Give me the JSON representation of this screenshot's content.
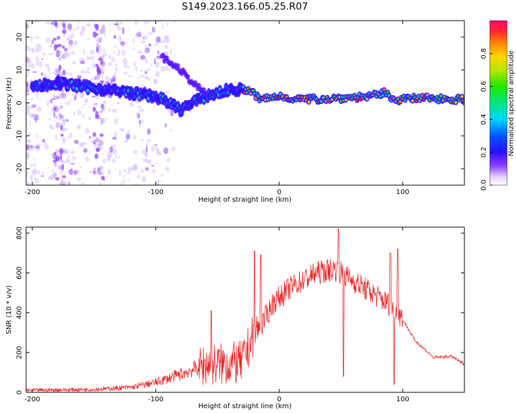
{
  "figure": {
    "title": "S149.2023.166.05.25.R07"
  },
  "chart_data": [
    {
      "type": "heatmap",
      "xlabel": "Height of straight line (km)",
      "ylabel": "Frequency (Hz)",
      "xlim": [
        -205,
        150
      ],
      "ylim": [
        -25,
        25
      ],
      "x_ticks": [
        -200,
        -100,
        0,
        100
      ],
      "y_ticks": [
        -20,
        -10,
        0,
        10,
        20
      ],
      "colorbar": {
        "label": "Normalized spectral amplitude",
        "range": [
          0,
          1
        ],
        "ticks": [
          0.0,
          0.2,
          0.4,
          0.6,
          0.8
        ]
      },
      "ridge_track": [
        {
          "x": -200,
          "y": 5
        },
        {
          "x": -180,
          "y": 6
        },
        {
          "x": -160,
          "y": 5
        },
        {
          "x": -140,
          "y": 4
        },
        {
          "x": -120,
          "y": 3
        },
        {
          "x": -100,
          "y": 2
        },
        {
          "x": -80,
          "y": -2
        },
        {
          "x": -60,
          "y": 2
        },
        {
          "x": -40,
          "y": 4
        },
        {
          "x": -25,
          "y": 4
        },
        {
          "x": -15,
          "y": 1
        },
        {
          "x": 0,
          "y": 2
        },
        {
          "x": 20,
          "y": 1
        },
        {
          "x": 50,
          "y": 1.5
        },
        {
          "x": 75,
          "y": 2
        },
        {
          "x": 85,
          "y": 3
        },
        {
          "x": 95,
          "y": 1
        },
        {
          "x": 120,
          "y": 1.5
        },
        {
          "x": 150,
          "y": 1
        }
      ],
      "secondary_track": [
        {
          "x": -95,
          "y": 14
        },
        {
          "x": -80,
          "y": 10
        },
        {
          "x": -70,
          "y": 6
        },
        {
          "x": -60,
          "y": 3
        }
      ]
    },
    {
      "type": "line",
      "xlabel": "Height of straight line (km)",
      "ylabel": "SNR (10 * v/v)",
      "xlim": [
        -205,
        150
      ],
      "ylim": [
        0,
        830
      ],
      "x_ticks": [
        -200,
        -100,
        0,
        100
      ],
      "y_ticks": [
        0,
        200,
        400,
        600,
        800
      ],
      "series": [
        {
          "color": "#ee2222",
          "trend": [
            {
              "x": -205,
              "y": 10
            },
            {
              "x": -150,
              "y": 15
            },
            {
              "x": -120,
              "y": 25
            },
            {
              "x": -100,
              "y": 50
            },
            {
              "x": -80,
              "y": 90
            },
            {
              "x": -60,
              "y": 140
            },
            {
              "x": -50,
              "y": 140
            },
            {
              "x": -30,
              "y": 150
            },
            {
              "x": -20,
              "y": 300
            },
            {
              "x": -15,
              "y": 330
            },
            {
              "x": -5,
              "y": 450
            },
            {
              "x": 10,
              "y": 530
            },
            {
              "x": 30,
              "y": 600
            },
            {
              "x": 45,
              "y": 620
            },
            {
              "x": 60,
              "y": 560
            },
            {
              "x": 80,
              "y": 480
            },
            {
              "x": 95,
              "y": 420
            },
            {
              "x": 110,
              "y": 260
            },
            {
              "x": 125,
              "y": 175
            },
            {
              "x": 140,
              "y": 180
            },
            {
              "x": 150,
              "y": 140
            }
          ],
          "peaks": [
            {
              "x": -55,
              "y": 410
            },
            {
              "x": -20,
              "y": 710
            },
            {
              "x": -15,
              "y": 690
            },
            {
              "x": 48,
              "y": 820
            },
            {
              "x": 52,
              "y": 80
            },
            {
              "x": 90,
              "y": 700
            },
            {
              "x": 93,
              "y": 40
            },
            {
              "x": 96,
              "y": 720
            }
          ]
        }
      ]
    }
  ]
}
